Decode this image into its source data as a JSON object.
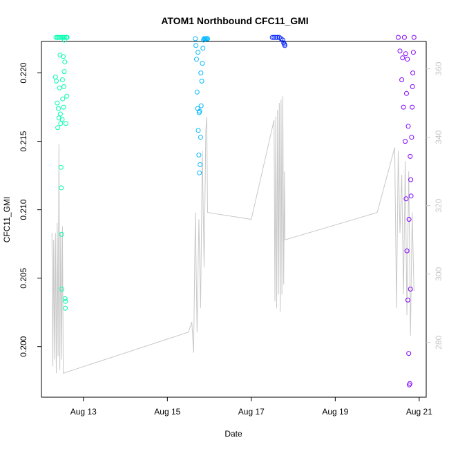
{
  "chart_data": {
    "type": "scatter",
    "title": "ATOM1 Northbound CFC11_GMI",
    "xlabel": "Date",
    "ylabel": "CFC11_GMI",
    "x_ticks": [
      "Aug 13",
      "Aug 15",
      "Aug 17",
      "Aug 19",
      "Aug 21"
    ],
    "y_ticks": [
      "0.200",
      "0.205",
      "0.210",
      "0.215",
      "0.220"
    ],
    "y2_ticks": [
      "280",
      "300",
      "320",
      "340",
      "360"
    ],
    "xlim": [
      "2016-08-12 00:00",
      "2016-08-21 04:00"
    ],
    "ylim": [
      0.1963,
      0.2223
    ],
    "y2lim": [
      264,
      368
    ],
    "grid": false,
    "legend": "none",
    "colors": {
      "secondary_line": "#c8c8c8",
      "groups": [
        "#00ffb0",
        "#00b8ff",
        "#0020ff",
        "#8000ff"
      ]
    },
    "series": [
      {
        "flight_points": [
          {
            "x": "2016-08-12 08:00",
            "y": 0.2197
          },
          {
            "x": "2016-08-12 08:30",
            "y": 0.2194
          },
          {
            "x": "2016-08-12 09:00",
            "y": 0.2178
          },
          {
            "x": "2016-08-12 09:20",
            "y": 0.216
          },
          {
            "x": "2016-08-12 09:40",
            "y": 0.2174
          },
          {
            "x": "2016-08-12 10:00",
            "y": 0.2167
          },
          {
            "x": "2016-08-12 10:20",
            "y": 0.2189
          },
          {
            "x": "2016-08-12 10:40",
            "y": 0.2213
          },
          {
            "x": "2016-08-12 10:50",
            "y": 0.217
          },
          {
            "x": "2016-08-12 11:00",
            "y": 0.2163
          },
          {
            "x": "2016-08-12 11:10",
            "y": 0.2131
          },
          {
            "x": "2016-08-12 11:20",
            "y": 0.2116
          },
          {
            "x": "2016-08-12 11:30",
            "y": 0.2082
          },
          {
            "x": "2016-08-12 11:40",
            "y": 0.2042
          },
          {
            "x": "2016-08-12 11:50",
            "y": 0.2166
          },
          {
            "x": "2016-08-12 12:00",
            "y": 0.2195
          },
          {
            "x": "2016-08-12 12:10",
            "y": 0.2181
          },
          {
            "x": "2016-08-12 12:20",
            "y": 0.2226
          },
          {
            "x": "2016-08-12 12:30",
            "y": 0.2212
          },
          {
            "x": "2016-08-12 12:40",
            "y": 0.2175
          },
          {
            "x": "2016-08-12 12:50",
            "y": 0.219
          },
          {
            "x": "2016-08-12 13:00",
            "y": 0.2201
          },
          {
            "x": "2016-08-12 13:10",
            "y": 0.2224
          },
          {
            "x": "2016-08-12 13:20",
            "y": 0.2208
          },
          {
            "x": "2016-08-12 13:30",
            "y": 0.2035
          },
          {
            "x": "2016-08-12 13:40",
            "y": 0.2028
          },
          {
            "x": "2016-08-12 13:50",
            "y": 0.2033
          },
          {
            "x": "2016-08-12 14:00",
            "y": 0.2163
          },
          {
            "x": "2016-08-12 14:10",
            "y": 0.2226
          },
          {
            "x": "2016-08-12 14:20",
            "y": 0.2226
          },
          {
            "x": "2016-08-12 14:30",
            "y": 0.2226
          },
          {
            "x": "2016-08-12 14:40",
            "y": 0.2226
          },
          {
            "x": "2016-08-12 08:20",
            "y": 0.2226
          },
          {
            "x": "2016-08-12 09:10",
            "y": 0.2226
          },
          {
            "x": "2016-08-12 09:50",
            "y": 0.2226
          },
          {
            "x": "2016-08-12 10:30",
            "y": 0.2226
          },
          {
            "x": "2016-08-12 11:15",
            "y": 0.2226
          },
          {
            "x": "2016-08-12 12:15",
            "y": 0.2226
          },
          {
            "x": "2016-08-12 13:15",
            "y": 0.2226
          },
          {
            "x": "2016-08-12 14:30",
            "y": 0.2183
          }
        ],
        "secondary_line": [
          {
            "x": "2016-08-12 06:00",
            "y2": 312
          },
          {
            "x": "2016-08-12 06:30",
            "y2": 273
          },
          {
            "x": "2016-08-12 07:00",
            "y2": 310
          },
          {
            "x": "2016-08-12 07:30",
            "y2": 275
          },
          {
            "x": "2016-08-12 08:00",
            "y2": 312
          },
          {
            "x": "2016-08-12 08:30",
            "y2": 271
          },
          {
            "x": "2016-08-12 09:00",
            "y2": 315
          },
          {
            "x": "2016-08-12 09:30",
            "y2": 276
          },
          {
            "x": "2016-08-12 10:00",
            "y2": 338
          },
          {
            "x": "2016-08-12 10:30",
            "y2": 272
          },
          {
            "x": "2016-08-12 11:00",
            "y2": 312
          },
          {
            "x": "2016-08-12 11:30",
            "y2": 275
          },
          {
            "x": "2016-08-12 12:00",
            "y2": 314
          },
          {
            "x": "2016-08-12 12:30",
            "y2": 271
          }
        ]
      },
      {
        "flight_points": [
          {
            "x": "2016-08-15 16:00",
            "y": 0.2225
          },
          {
            "x": "2016-08-15 16:20",
            "y": 0.222
          },
          {
            "x": "2016-08-15 16:40",
            "y": 0.221
          },
          {
            "x": "2016-08-15 17:00",
            "y": 0.2186
          },
          {
            "x": "2016-08-15 17:20",
            "y": 0.2174
          },
          {
            "x": "2016-08-15 17:40",
            "y": 0.2158
          },
          {
            "x": "2016-08-15 18:00",
            "y": 0.214
          },
          {
            "x": "2016-08-15 18:20",
            "y": 0.2127
          },
          {
            "x": "2016-08-15 18:40",
            "y": 0.2133
          },
          {
            "x": "2016-08-15 19:00",
            "y": 0.2153
          },
          {
            "x": "2016-08-15 19:20",
            "y": 0.2176
          },
          {
            "x": "2016-08-15 19:40",
            "y": 0.2194
          },
          {
            "x": "2016-08-15 20:00",
            "y": 0.2207
          },
          {
            "x": "2016-08-15 20:20",
            "y": 0.2218
          },
          {
            "x": "2016-08-15 20:40",
            "y": 0.2224
          },
          {
            "x": "2016-08-15 21:00",
            "y": 0.2225
          },
          {
            "x": "2016-08-15 21:30",
            "y": 0.2225
          },
          {
            "x": "2016-08-15 22:00",
            "y": 0.2225
          },
          {
            "x": "2016-08-15 22:30",
            "y": 0.2225
          },
          {
            "x": "2016-08-15 23:00",
            "y": 0.2225
          },
          {
            "x": "2016-08-15 18:10",
            "y": 0.2171
          },
          {
            "x": "2016-08-15 18:30",
            "y": 0.2172
          },
          {
            "x": "2016-08-15 19:10",
            "y": 0.22
          },
          {
            "x": "2016-08-15 17:30",
            "y": 0.2215
          }
        ],
        "secondary_line": [
          {
            "x": "2016-08-15 12:00",
            "y2": 283
          },
          {
            "x": "2016-08-15 14:00",
            "y2": 286
          },
          {
            "x": "2016-08-15 15:00",
            "y2": 277
          },
          {
            "x": "2016-08-15 16:00",
            "y2": 318
          },
          {
            "x": "2016-08-15 17:00",
            "y2": 283
          },
          {
            "x": "2016-08-15 18:00",
            "y2": 316
          },
          {
            "x": "2016-08-15 19:00",
            "y2": 290
          },
          {
            "x": "2016-08-15 20:00",
            "y2": 336
          },
          {
            "x": "2016-08-15 21:00",
            "y2": 302
          },
          {
            "x": "2016-08-15 22:00",
            "y2": 342
          },
          {
            "x": "2016-08-15 22:30",
            "y2": 346
          },
          {
            "x": "2016-08-15 23:00",
            "y2": 318
          }
        ]
      },
      {
        "flight_points": [
          {
            "x": "2016-08-17 12:00",
            "y": 0.2226
          },
          {
            "x": "2016-08-17 13:00",
            "y": 0.2226
          },
          {
            "x": "2016-08-17 14:00",
            "y": 0.2226
          },
          {
            "x": "2016-08-17 15:00",
            "y": 0.2226
          },
          {
            "x": "2016-08-17 16:00",
            "y": 0.2226
          },
          {
            "x": "2016-08-17 17:00",
            "y": 0.2225
          },
          {
            "x": "2016-08-17 18:00",
            "y": 0.2224
          },
          {
            "x": "2016-08-17 18:30",
            "y": 0.2222
          },
          {
            "x": "2016-08-17 19:00",
            "y": 0.2221
          },
          {
            "x": "2016-08-17 19:10",
            "y": 0.222
          }
        ],
        "secondary_line": [
          {
            "x": "2016-08-17 00:00",
            "y2": 316
          },
          {
            "x": "2016-08-17 13:00",
            "y2": 345
          },
          {
            "x": "2016-08-17 13:30",
            "y2": 292
          },
          {
            "x": "2016-08-17 14:00",
            "y2": 346
          },
          {
            "x": "2016-08-17 14:30",
            "y2": 290
          },
          {
            "x": "2016-08-17 15:00",
            "y2": 348
          },
          {
            "x": "2016-08-17 15:30",
            "y2": 294
          },
          {
            "x": "2016-08-17 16:00",
            "y2": 350
          },
          {
            "x": "2016-08-17 16:30",
            "y2": 289
          },
          {
            "x": "2016-08-17 17:00",
            "y2": 351
          },
          {
            "x": "2016-08-17 17:30",
            "y2": 294
          },
          {
            "x": "2016-08-17 18:00",
            "y2": 352
          },
          {
            "x": "2016-08-17 18:30",
            "y2": 297
          },
          {
            "x": "2016-08-17 19:00",
            "y2": 330
          },
          {
            "x": "2016-08-17 19:15",
            "y2": 310
          }
        ]
      },
      {
        "flight_points": [
          {
            "x": "2016-08-20 12:00",
            "y": 0.2226
          },
          {
            "x": "2016-08-20 13:00",
            "y": 0.2216
          },
          {
            "x": "2016-08-20 14:00",
            "y": 0.2195
          },
          {
            "x": "2016-08-20 15:00",
            "y": 0.2175
          },
          {
            "x": "2016-08-20 16:00",
            "y": 0.215
          },
          {
            "x": "2016-08-20 16:30",
            "y": 0.2108
          },
          {
            "x": "2016-08-20 17:00",
            "y": 0.207
          },
          {
            "x": "2016-08-20 17:30",
            "y": 0.2034
          },
          {
            "x": "2016-08-20 18:00",
            "y": 0.1995
          },
          {
            "x": "2016-08-20 18:20",
            "y": 0.1972
          },
          {
            "x": "2016-08-20 18:40",
            "y": 0.1973
          },
          {
            "x": "2016-08-20 19:00",
            "y": 0.2042
          },
          {
            "x": "2016-08-20 19:20",
            "y": 0.211
          },
          {
            "x": "2016-08-20 19:40",
            "y": 0.2153
          },
          {
            "x": "2016-08-20 20:00",
            "y": 0.2175
          },
          {
            "x": "2016-08-20 20:20",
            "y": 0.22
          },
          {
            "x": "2016-08-20 20:40",
            "y": 0.2215
          },
          {
            "x": "2016-08-20 21:00",
            "y": 0.2226
          },
          {
            "x": "2016-08-20 16:15",
            "y": 0.2214
          },
          {
            "x": "2016-08-20 17:15",
            "y": 0.221
          },
          {
            "x": "2016-08-20 18:10",
            "y": 0.2093
          },
          {
            "x": "2016-08-20 19:10",
            "y": 0.2122
          },
          {
            "x": "2016-08-20 20:10",
            "y": 0.219
          },
          {
            "x": "2016-08-20 14:30",
            "y": 0.2211
          },
          {
            "x": "2016-08-20 15:30",
            "y": 0.2226
          },
          {
            "x": "2016-08-20 16:45",
            "y": 0.2185
          },
          {
            "x": "2016-08-20 17:45",
            "y": 0.2161
          },
          {
            "x": "2016-08-20 18:50",
            "y": 0.2139
          }
        ],
        "secondary_line": [
          {
            "x": "2016-08-20 00:00",
            "y2": 318
          },
          {
            "x": "2016-08-20 10:00",
            "y2": 337
          },
          {
            "x": "2016-08-20 11:00",
            "y2": 290
          },
          {
            "x": "2016-08-20 12:00",
            "y2": 336
          },
          {
            "x": "2016-08-20 13:00",
            "y2": 312
          },
          {
            "x": "2016-08-20 14:00",
            "y2": 329
          },
          {
            "x": "2016-08-20 15:00",
            "y2": 294
          },
          {
            "x": "2016-08-20 16:00",
            "y2": 333
          },
          {
            "x": "2016-08-20 17:00",
            "y2": 288
          },
          {
            "x": "2016-08-20 18:00",
            "y2": 330
          },
          {
            "x": "2016-08-20 19:00",
            "y2": 282
          },
          {
            "x": "2016-08-20 20:00",
            "y2": 318
          },
          {
            "x": "2016-08-20 21:00",
            "y2": 295
          }
        ]
      }
    ]
  }
}
